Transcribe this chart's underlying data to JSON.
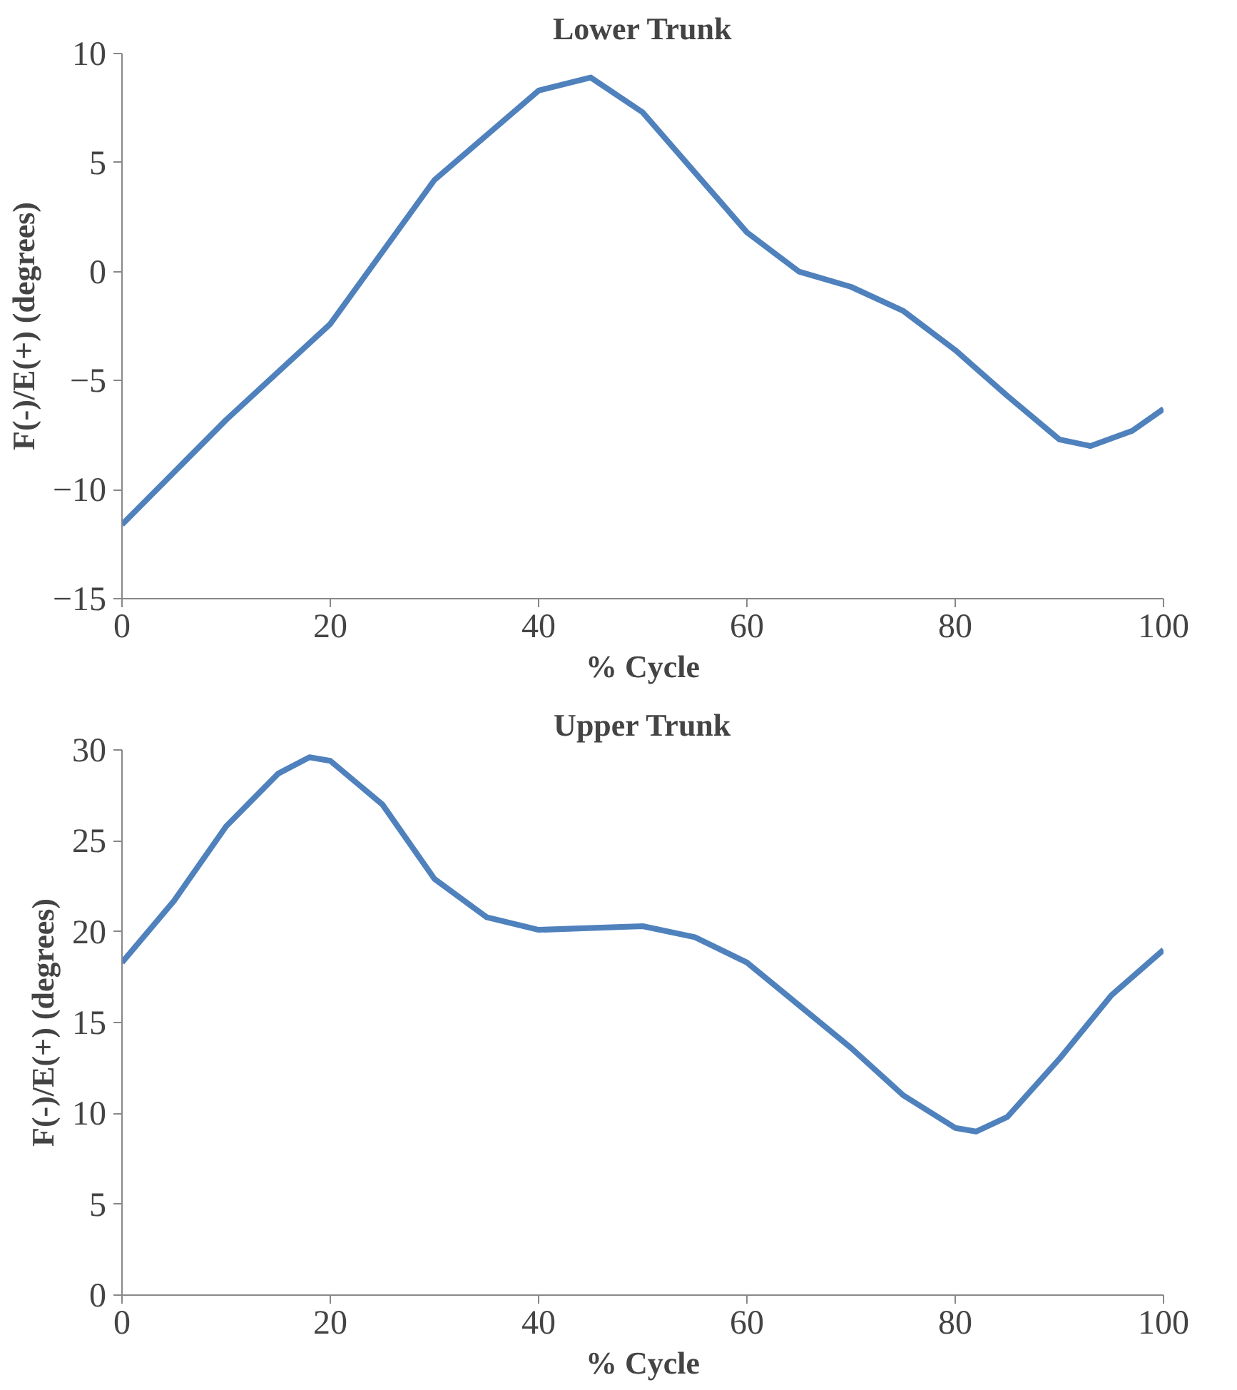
{
  "chart_data": [
    {
      "type": "line",
      "title": "Lower Trunk",
      "xlabel": "% Cycle",
      "ylabel": "F(-)/E(+) (degrees)",
      "xlim": [
        0,
        100
      ],
      "xticks": [
        0,
        20,
        40,
        60,
        80,
        100
      ],
      "ylim": [
        -15,
        10
      ],
      "yticks": [
        -15,
        -10,
        -5,
        0,
        5,
        10
      ],
      "grid": false,
      "marker": "none",
      "line_style": "solid",
      "series": [
        {
          "color": "#4f81bd",
          "x": [
            0,
            5,
            10,
            20,
            30,
            40,
            45,
            50,
            60,
            65,
            70,
            75,
            80,
            85,
            90,
            93,
            97,
            100
          ],
          "values": [
            -11.6,
            -9.2,
            -6.8,
            -2.4,
            4.2,
            8.3,
            8.9,
            7.3,
            1.8,
            0,
            -0.7,
            -1.8,
            -3.6,
            -5.7,
            -7.7,
            -8.0,
            -7.3,
            -6.3
          ]
        }
      ]
    },
    {
      "type": "line",
      "title": "Upper Trunk",
      "xlabel": "% Cycle",
      "ylabel": "F(-)/E(+) (degrees)",
      "xlim": [
        0,
        100
      ],
      "xticks": [
        0,
        20,
        40,
        60,
        80,
        100
      ],
      "ylim": [
        0,
        30
      ],
      "yticks": [
        0,
        5,
        10,
        15,
        20,
        25,
        30
      ],
      "grid": false,
      "marker": "none",
      "line_style": "solid",
      "series": [
        {
          "color": "#4f81bd",
          "x": [
            0,
            5,
            10,
            15,
            18,
            20,
            25,
            30,
            35,
            40,
            50,
            55,
            60,
            70,
            75,
            80,
            82,
            85,
            90,
            95,
            100
          ],
          "values": [
            18.3,
            21.7,
            25.8,
            28.7,
            29.6,
            29.4,
            27,
            22.9,
            20.8,
            20.1,
            20.3,
            19.7,
            18.3,
            13.6,
            11,
            9.2,
            9,
            9.8,
            13,
            16.5,
            19
          ]
        }
      ]
    }
  ]
}
